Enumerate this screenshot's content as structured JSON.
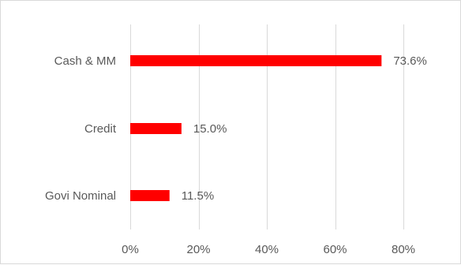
{
  "chart_data": {
    "type": "bar",
    "orientation": "horizontal",
    "categories": [
      "Cash & MM",
      "Credit",
      "Govi Nominal"
    ],
    "values": [
      73.6,
      15.0,
      11.5
    ],
    "data_labels": [
      "73.6%",
      "15.0%",
      "11.5%"
    ],
    "xlim": [
      0,
      80
    ],
    "x_ticks": [
      0,
      20,
      40,
      60,
      80
    ],
    "x_tick_labels": [
      "0%",
      "20%",
      "40%",
      "60%",
      "80%"
    ],
    "grid": "vertical",
    "bar_color": "#ff0000"
  }
}
